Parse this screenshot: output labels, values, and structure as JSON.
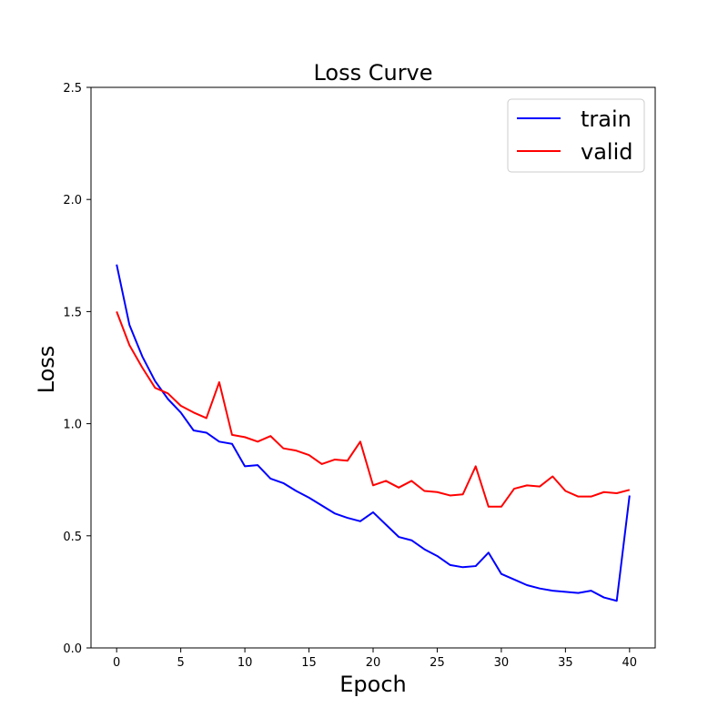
{
  "chart_data": {
    "type": "line",
    "title": "Loss Curve",
    "xlabel": "Epoch",
    "ylabel": "Loss",
    "xlim": [
      -2,
      42
    ],
    "ylim": [
      0,
      2.5
    ],
    "xticks": [
      0,
      5,
      10,
      15,
      20,
      25,
      30,
      35,
      40
    ],
    "yticks": [
      0.0,
      0.5,
      1.0,
      1.5,
      2.0,
      2.5
    ],
    "xtick_labels": [
      "0",
      "5",
      "10",
      "15",
      "20",
      "25",
      "30",
      "35",
      "40"
    ],
    "ytick_labels": [
      "0.0",
      "0.5",
      "1.0",
      "1.5",
      "2.0",
      "2.5"
    ],
    "grid": false,
    "legend_position": "top-right",
    "x": [
      0,
      1,
      2,
      3,
      4,
      5,
      6,
      7,
      8,
      9,
      10,
      11,
      12,
      13,
      14,
      15,
      16,
      17,
      18,
      19,
      20,
      21,
      22,
      23,
      24,
      25,
      26,
      27,
      28,
      29,
      30,
      31,
      32,
      33,
      34,
      35,
      36,
      37,
      38,
      39,
      40
    ],
    "series": [
      {
        "name": "train",
        "color": "#0000ff",
        "values": [
          1.71,
          1.44,
          1.3,
          1.19,
          1.11,
          1.05,
          0.97,
          0.96,
          0.92,
          0.91,
          0.81,
          0.815,
          0.755,
          0.735,
          0.7,
          0.67,
          0.635,
          0.6,
          0.58,
          0.565,
          0.605,
          0.55,
          0.495,
          0.48,
          0.44,
          0.41,
          0.37,
          0.36,
          0.365,
          0.425,
          0.33,
          0.305,
          0.28,
          0.265,
          0.255,
          0.25,
          0.245,
          0.255,
          0.225,
          0.21,
          0.68
        ]
      },
      {
        "name": "valid",
        "color": "#ff0000",
        "values": [
          1.5,
          1.35,
          1.25,
          1.16,
          1.135,
          1.08,
          1.05,
          1.025,
          1.185,
          0.95,
          0.94,
          0.92,
          0.945,
          0.89,
          0.88,
          0.86,
          0.82,
          0.84,
          0.835,
          0.92,
          0.725,
          0.745,
          0.715,
          0.745,
          0.7,
          0.695,
          0.68,
          0.685,
          0.81,
          0.63,
          0.63,
          0.71,
          0.725,
          0.72,
          0.765,
          0.7,
          0.675,
          0.675,
          0.695,
          0.69,
          0.705
        ]
      }
    ]
  }
}
